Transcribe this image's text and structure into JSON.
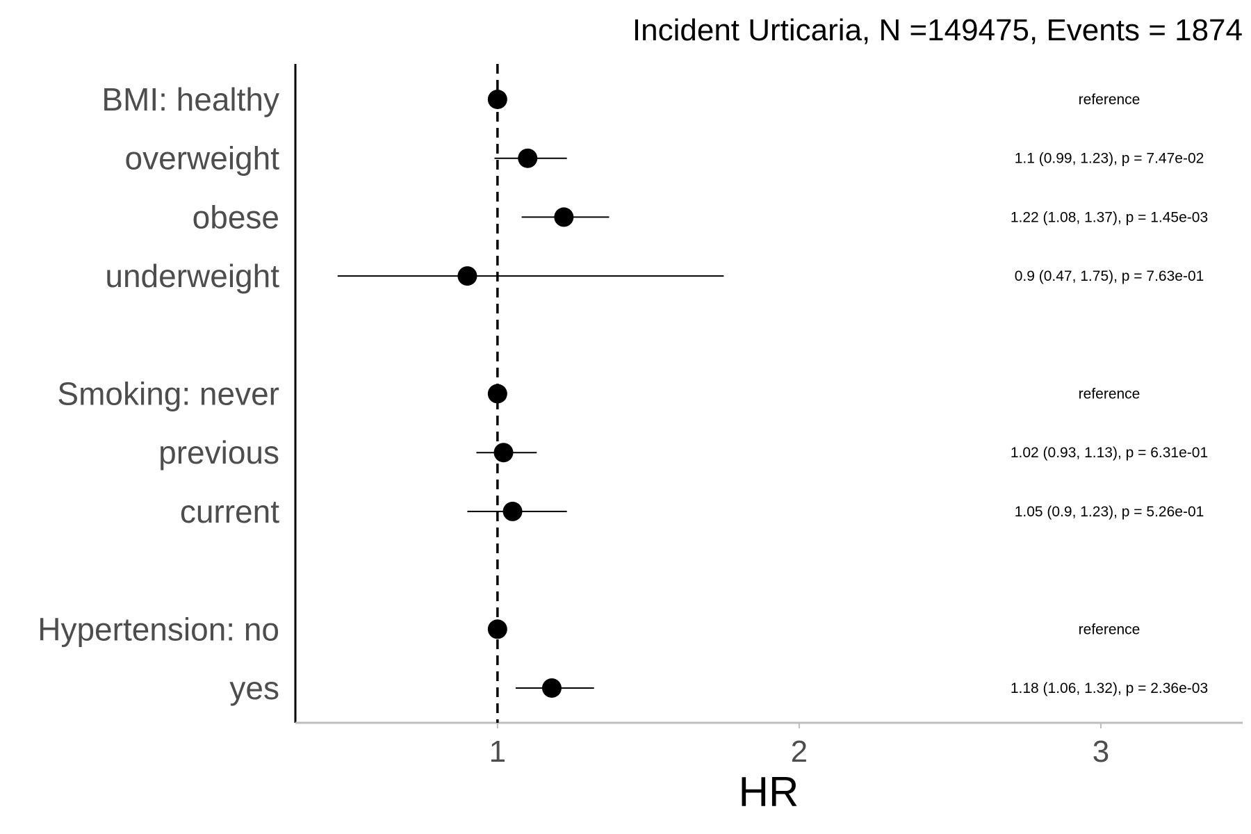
{
  "chart_data": {
    "type": "forest",
    "title": "Incident Urticaria, N =149475, Events = 1874",
    "xlabel": "HR",
    "xlim": [
      0.33,
      3.47
    ],
    "xticks": [
      1,
      2,
      3
    ],
    "reference_line": 1,
    "rows": [
      {
        "label": "BMI: healthy",
        "hr": 1,
        "lo": null,
        "hi": null,
        "annotation": "reference"
      },
      {
        "label": "overweight",
        "hr": 1.1,
        "lo": 0.99,
        "hi": 1.23,
        "annotation": "1.1 (0.99, 1.23), p = 7.47e-02"
      },
      {
        "label": "obese",
        "hr": 1.22,
        "lo": 1.08,
        "hi": 1.37,
        "annotation": "1.22 (1.08, 1.37), p = 1.45e-03"
      },
      {
        "label": "underweight",
        "hr": 0.9,
        "lo": 0.47,
        "hi": 1.75,
        "annotation": "0.9 (0.47, 1.75), p = 7.63e-01"
      },
      {
        "label": "",
        "hr": null,
        "lo": null,
        "hi": null,
        "annotation": ""
      },
      {
        "label": "Smoking: never",
        "hr": 1,
        "lo": null,
        "hi": null,
        "annotation": "reference"
      },
      {
        "label": "previous",
        "hr": 1.02,
        "lo": 0.93,
        "hi": 1.13,
        "annotation": "1.02 (0.93, 1.13), p = 6.31e-01"
      },
      {
        "label": "current",
        "hr": 1.05,
        "lo": 0.9,
        "hi": 1.23,
        "annotation": "1.05 (0.9, 1.23), p = 5.26e-01"
      },
      {
        "label": "",
        "hr": null,
        "lo": null,
        "hi": null,
        "annotation": ""
      },
      {
        "label": "Hypertension: no",
        "hr": 1,
        "lo": null,
        "hi": null,
        "annotation": "reference"
      },
      {
        "label": "yes",
        "hr": 1.18,
        "lo": 1.06,
        "hi": 1.32,
        "annotation": "1.18 (1.06, 1.32), p = 2.36e-03"
      }
    ]
  }
}
